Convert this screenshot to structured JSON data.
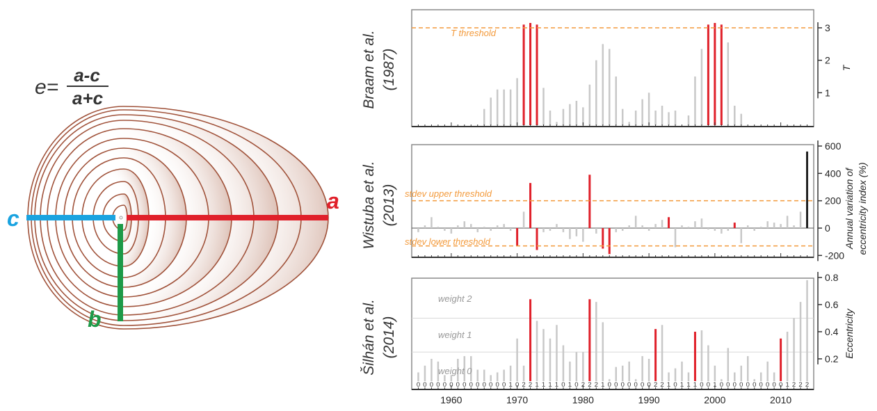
{
  "formula": {
    "lhs": "e=",
    "numerator": "a-c",
    "denominator": "a+c"
  },
  "diagram_labels": {
    "a": "a",
    "b": "b",
    "c": "c"
  },
  "colors": {
    "a_line": "#e0202a",
    "b_line": "#1d9a48",
    "c_line": "#1aa3e0",
    "ellipse": "#a0523a",
    "threshold": "#f39a3b",
    "event_bar": "#e0202a",
    "base_bar": "#c8c8c8",
    "frame": "#888888"
  },
  "chart_data": [
    {
      "type": "bar",
      "panel_label": [
        "Braam et al.",
        "(1987)"
      ],
      "ylabel": "T",
      "yticks": [
        1,
        2,
        3
      ],
      "ylim": [
        0,
        3.5
      ],
      "threshold": {
        "label": "T threshold",
        "value": 3.0
      },
      "x": [
        1965,
        1966,
        1967,
        1968,
        1969,
        1970,
        1971,
        1972,
        1973,
        1974,
        1975,
        1976,
        1977,
        1978,
        1979,
        1980,
        1981,
        1982,
        1983,
        1984,
        1985,
        1986,
        1987,
        1988,
        1989,
        1990,
        1991,
        1992,
        1993,
        1994,
        1995,
        1996,
        1997,
        1998,
        1999,
        2000,
        2001,
        2002,
        2003,
        2004
      ],
      "values": [
        0.5,
        0.85,
        1.1,
        1.1,
        1.1,
        1.45,
        3.1,
        3.15,
        3.1,
        1.15,
        0.45,
        0.1,
        0.5,
        0.65,
        0.75,
        0.55,
        1.25,
        2.0,
        2.5,
        2.35,
        1.5,
        0.5,
        0.1,
        0.45,
        0.8,
        1.0,
        0.45,
        0.6,
        0.4,
        0.45,
        0.0,
        0.3,
        1.5,
        2.35,
        3.1,
        3.15,
        3.1,
        2.55,
        0.6,
        0.35
      ],
      "events": [
        1971,
        1972,
        1973,
        1999,
        2000,
        2001
      ]
    },
    {
      "type": "bar",
      "panel_label": [
        "Wistuba et al.",
        "(2013)"
      ],
      "ylabel": [
        "Annual variation of",
        "eccentricity index (%)"
      ],
      "yticks": [
        -200,
        0,
        200,
        400,
        600
      ],
      "ylim": [
        -200,
        600
      ],
      "thresholds": [
        {
          "label": "stdev upper threshold",
          "value": 200
        },
        {
          "label": "stdev lower threshold",
          "value": -130
        }
      ],
      "x": [
        1955,
        1956,
        1957,
        1958,
        1959,
        1960,
        1961,
        1962,
        1963,
        1964,
        1965,
        1966,
        1967,
        1968,
        1969,
        1970,
        1971,
        1972,
        1973,
        1974,
        1975,
        1976,
        1977,
        1978,
        1979,
        1980,
        1981,
        1982,
        1983,
        1984,
        1985,
        1986,
        1987,
        1988,
        1989,
        1990,
        1991,
        1992,
        1993,
        1994,
        1995,
        1996,
        1997,
        1998,
        1999,
        2000,
        2001,
        2002,
        2003,
        2004,
        2005,
        2006,
        2007,
        2008,
        2009,
        2010,
        2011,
        2012,
        2013,
        2014
      ],
      "values": [
        -30,
        20,
        80,
        10,
        -20,
        -40,
        20,
        50,
        30,
        -30,
        10,
        -20,
        20,
        30,
        -20,
        -130,
        120,
        330,
        -160,
        -30,
        -20,
        30,
        -30,
        -80,
        -60,
        -100,
        390,
        -40,
        -150,
        -190,
        -30,
        -20,
        20,
        90,
        20,
        -20,
        30,
        60,
        80,
        -140,
        20,
        10,
        50,
        70,
        -10,
        -20,
        -40,
        -20,
        40,
        -110,
        20,
        -20,
        10,
        50,
        40,
        30,
        90,
        20,
        120,
        560
      ],
      "events": [
        1970,
        1972,
        1973,
        1981,
        1983,
        1984,
        1993,
        2003
      ]
    },
    {
      "type": "bar",
      "panel_label": [
        "Šilhán et al.",
        "(2014)"
      ],
      "ylabel": "Eccentricity",
      "yticks": [
        0.2,
        0.4,
        0.6,
        0.8
      ],
      "ylim": [
        0,
        0.8
      ],
      "weight_lines": [
        {
          "label": "weight 2",
          "value": 0.5
        },
        {
          "label": "weight 1",
          "value": 0.25
        },
        {
          "label": "weight 0",
          "value": 0.0
        }
      ],
      "x": [
        1955,
        1956,
        1957,
        1958,
        1959,
        1960,
        1961,
        1962,
        1963,
        1964,
        1965,
        1966,
        1967,
        1968,
        1969,
        1970,
        1971,
        1972,
        1973,
        1974,
        1975,
        1976,
        1977,
        1978,
        1979,
        1980,
        1981,
        1982,
        1983,
        1984,
        1985,
        1986,
        1987,
        1988,
        1989,
        1990,
        1991,
        1992,
        1993,
        1994,
        1995,
        1996,
        1997,
        1998,
        1999,
        2000,
        2001,
        2002,
        2003,
        2004,
        2005,
        2006,
        2007,
        2008,
        2009,
        2010,
        2011,
        2012,
        2013,
        2014
      ],
      "values": [
        0.1,
        0.15,
        0.2,
        0.18,
        0.08,
        0.08,
        0.2,
        0.22,
        0.22,
        0.12,
        0.12,
        0.08,
        0.1,
        0.12,
        0.15,
        0.35,
        0.15,
        0.64,
        0.48,
        0.42,
        0.35,
        0.45,
        0.3,
        0.18,
        0.25,
        0.25,
        0.64,
        0.62,
        0.47,
        0.05,
        0.14,
        0.15,
        0.18,
        0.05,
        0.22,
        0.2,
        0.42,
        0.45,
        0.1,
        0.13,
        0.18,
        0.1,
        0.4,
        0.41,
        0.3,
        0.15,
        0.05,
        0.28,
        0.1,
        0.15,
        0.22,
        0.05,
        0.1,
        0.18,
        0.1,
        0.35,
        0.4,
        0.5,
        0.62,
        0.78
      ],
      "events": [
        1972,
        1981,
        1991,
        1997,
        2010
      ],
      "weights": [
        "0",
        "0",
        "0",
        "0",
        "0",
        "0",
        "0",
        "0",
        "0",
        "0",
        "0",
        "0",
        "0",
        "0",
        "1",
        "0",
        "2",
        "2",
        "1",
        "1",
        "1",
        "1",
        "0",
        "1",
        "0",
        "2",
        "2",
        "2",
        "1",
        "0",
        "0",
        "0",
        "0",
        "0",
        "0",
        "0",
        "2",
        "2",
        "1",
        "0",
        "1",
        "1",
        "1",
        "0",
        "0",
        "1",
        "0",
        "0",
        "0",
        "0",
        "0",
        "0",
        "0",
        "0",
        "0",
        "0",
        "1",
        "2",
        "2",
        "2"
      ],
      "xticks": [
        1960,
        1970,
        1980,
        1990,
        2000,
        2010
      ]
    }
  ]
}
